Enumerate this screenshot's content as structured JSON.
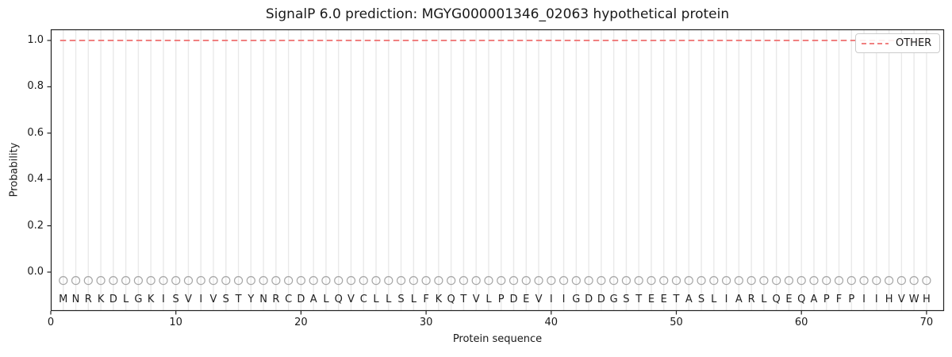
{
  "chart_data": {
    "type": "line",
    "title": "SignalP 6.0 prediction: MGYG000001346_02063 hypothetical protein",
    "xlabel": "Protein sequence",
    "ylabel": "Probability",
    "xlim": [
      0,
      71.4
    ],
    "ylim": [
      -0.17,
      1.05
    ],
    "xticks": [
      0,
      10,
      20,
      30,
      40,
      50,
      60,
      70
    ],
    "yticks": [
      0.0,
      0.2,
      0.4,
      0.6,
      0.8,
      1.0
    ],
    "ytick_labels": [
      "0.0",
      "0.2",
      "0.4",
      "0.6",
      "0.8",
      "1.0"
    ],
    "grid": {
      "vertical_line_per_residue": true,
      "color": "#e9e9e9"
    },
    "legend": {
      "position": "upper right",
      "entries": [
        {
          "label": "OTHER",
          "color": "#f08080",
          "linestyle": "dashed"
        }
      ]
    },
    "sequence": "MNRKDLGKISVIVSTYNRCDALQVCLLSLFKQTVLPDEVIIGDDGSTEETASLIARLQEQAPFPIIHVWH",
    "sequence_length": 70,
    "series": [
      {
        "name": "OTHER",
        "linestyle": "dashed",
        "color": "#f08080",
        "x_range": [
          1,
          70
        ],
        "constant_y": 1.0,
        "description": "Constant probability 1.0 across all 70 residue positions"
      }
    ],
    "residue_markers": {
      "shape": "open-circle",
      "y_value": -0.05,
      "color": "#a6a6a6"
    }
  },
  "colors": {
    "background": "#ffffff",
    "spine": "#222222",
    "grid": "#e9e9e9",
    "other_line": "#f08080",
    "marker_stroke": "#a6a6a6",
    "text": "#1a1a1a",
    "legend_border": "#cccccc"
  }
}
